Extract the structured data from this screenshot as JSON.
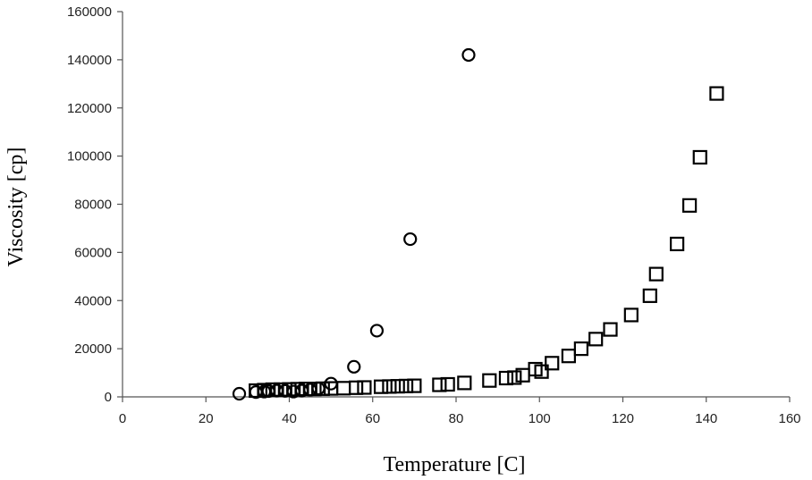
{
  "chart_data": {
    "type": "scatter",
    "xlabel": "Temperature [C]",
    "ylabel": "Viscosity [cp]",
    "xlim": [
      0,
      160
    ],
    "ylim": [
      0,
      160000
    ],
    "x_ticks": [
      "0",
      "20",
      "40",
      "60",
      "80",
      "100",
      "120",
      "140",
      "160"
    ],
    "y_ticks": [
      "0",
      "20000",
      "40000",
      "60000",
      "80000",
      "100000",
      "120000",
      "140000",
      "160000"
    ],
    "grid": false,
    "legend": "none",
    "series": [
      {
        "marker": "circle",
        "points": [
          [
            28,
            1300
          ],
          [
            32,
            2000
          ],
          [
            34,
            2200
          ],
          [
            35,
            2400
          ],
          [
            37,
            2600
          ],
          [
            39,
            2500
          ],
          [
            41,
            2200
          ],
          [
            43,
            2600
          ],
          [
            45,
            3000
          ],
          [
            47,
            3500
          ],
          [
            50,
            5500
          ],
          [
            55.5,
            12500
          ],
          [
            61,
            27500
          ],
          [
            69,
            65500
          ],
          [
            83,
            142000
          ]
        ]
      },
      {
        "marker": "square",
        "points": [
          [
            32,
            2600
          ],
          [
            34,
            2800
          ],
          [
            36,
            3000
          ],
          [
            38,
            3000
          ],
          [
            40,
            3100
          ],
          [
            42,
            3200
          ],
          [
            44,
            3300
          ],
          [
            46,
            3300
          ],
          [
            48,
            3400
          ],
          [
            50,
            3500
          ],
          [
            53,
            3600
          ],
          [
            56,
            3800
          ],
          [
            58,
            3900
          ],
          [
            62,
            4200
          ],
          [
            64,
            4300
          ],
          [
            66,
            4400
          ],
          [
            68,
            4500
          ],
          [
            70,
            4600
          ],
          [
            76,
            5000
          ],
          [
            78,
            5200
          ],
          [
            82,
            5800
          ],
          [
            88,
            6800
          ],
          [
            92,
            7800
          ],
          [
            94,
            8000
          ],
          [
            96,
            9000
          ],
          [
            99,
            11500
          ],
          [
            100.5,
            10500
          ],
          [
            103,
            14000
          ],
          [
            107,
            17000
          ],
          [
            110,
            20000
          ],
          [
            113.5,
            24000
          ],
          [
            117,
            28000
          ],
          [
            122,
            34000
          ],
          [
            126.5,
            42000
          ],
          [
            128,
            51000
          ],
          [
            133,
            63500
          ],
          [
            136,
            79500
          ],
          [
            138.5,
            99500
          ],
          [
            142.5,
            126000
          ]
        ]
      }
    ]
  }
}
